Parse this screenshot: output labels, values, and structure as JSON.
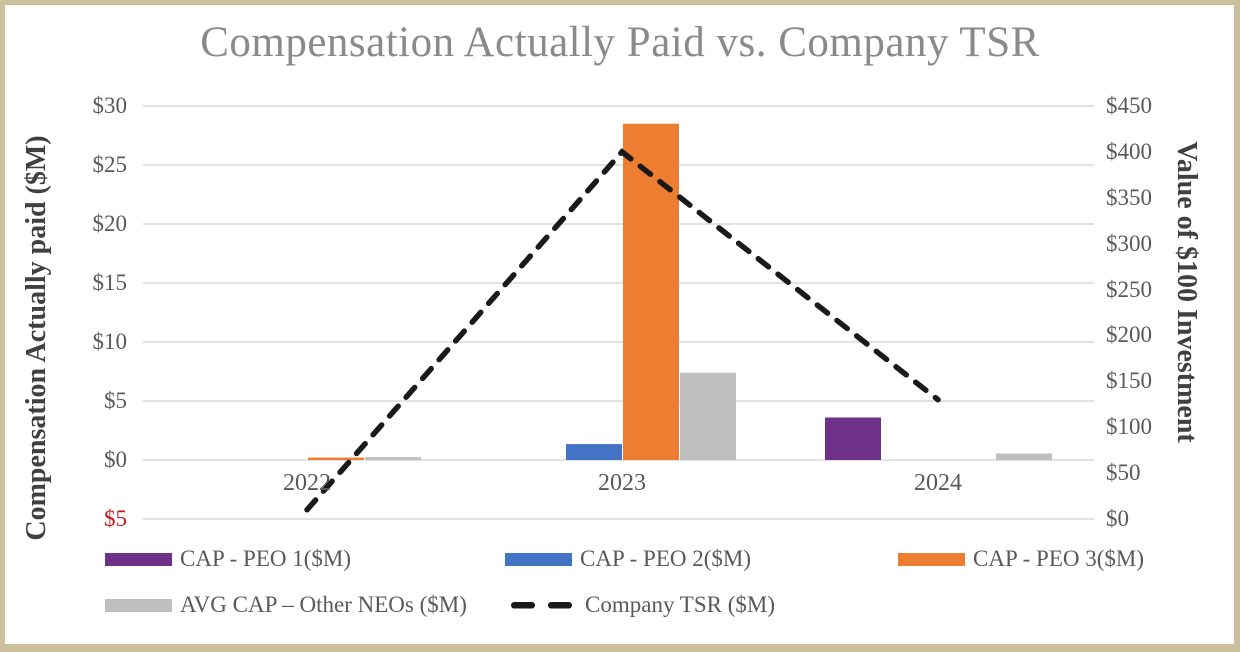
{
  "title": "Compensation Actually Paid vs. Company TSR",
  "left_axis": {
    "title": "Compensation Actually paid ($M)",
    "ticks": [
      "$30",
      "$25",
      "$20",
      "$15",
      "$10",
      "$5",
      "$0",
      "$5"
    ],
    "tick_color": "#595959",
    "negative_tick_color": "#C31A1A"
  },
  "right_axis": {
    "title": "Value of $100 Investment",
    "ticks": [
      "$450",
      "$400",
      "$350",
      "$300",
      "$250",
      "$200",
      "$150",
      "$100",
      "$50",
      "$0"
    ],
    "tick_color": "#595959"
  },
  "chart_data": {
    "type": "combo",
    "title": "Compensation Actually Paid vs. Company TSR",
    "categories": [
      "2022",
      "2023",
      "2024"
    ],
    "series": [
      {
        "name": "CAP - PEO 1($M)",
        "type": "bar",
        "axis": "left",
        "color": "#6F3189",
        "values": [
          0,
          0,
          3.6
        ]
      },
      {
        "name": "CAP - PEO 2($M)",
        "type": "bar",
        "axis": "left",
        "color": "#4472C4",
        "values": [
          0,
          1.35,
          0
        ]
      },
      {
        "name": "CAP - PEO 3($M)",
        "type": "bar",
        "axis": "left",
        "color": "#ED7D31",
        "values": [
          0.2,
          28.5,
          0
        ]
      },
      {
        "name": "AVG CAP – Other NEOs ($M)",
        "type": "bar",
        "axis": "left",
        "color": "#BFBFBF",
        "values": [
          0.25,
          7.4,
          0.55
        ]
      },
      {
        "name": "Company TSR ($M)",
        "type": "line",
        "axis": "right",
        "color": "#1A1A1A",
        "dash": true,
        "values": [
          10,
          400,
          130
        ]
      }
    ],
    "left_ylabel": "Compensation Actually paid ($M)",
    "right_ylabel": "Value of $100 Investment",
    "left_ylim": [
      -5,
      30
    ],
    "right_ylim": [
      0,
      450
    ],
    "grid": true,
    "gridline_color": "#D9D9D9",
    "legend_position": "bottom"
  },
  "colors": {
    "frame_border": "#CBC09B",
    "title_text": "#8A8A8A",
    "axis_title_text": "#404040"
  }
}
